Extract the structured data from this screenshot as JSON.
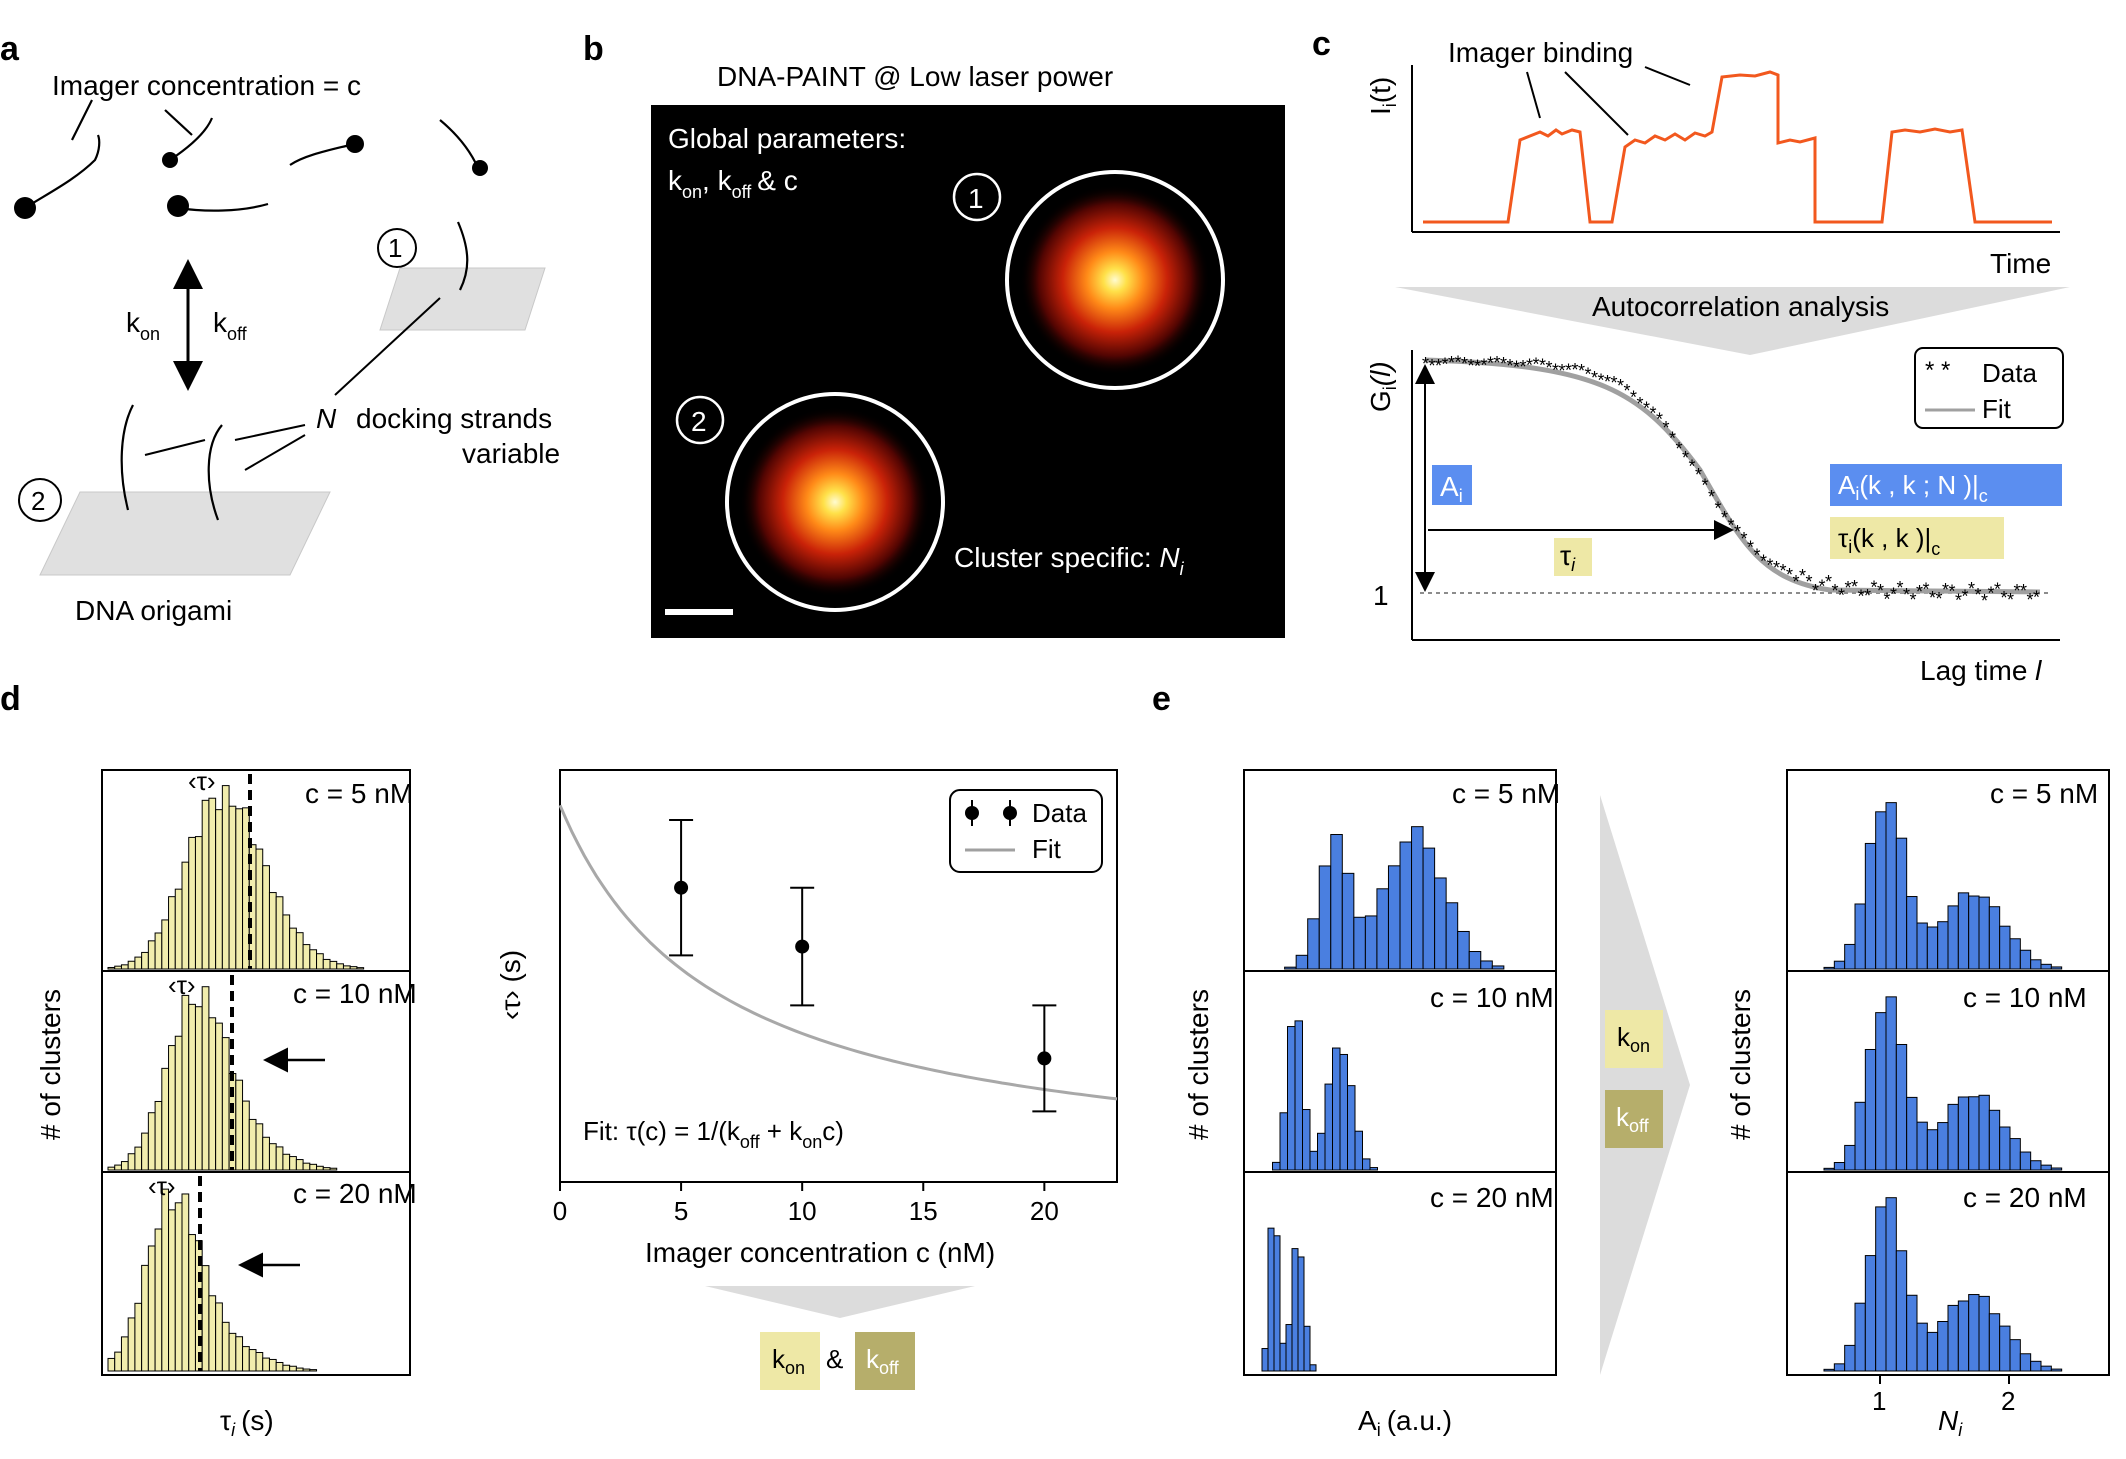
{
  "colors": {
    "yellow_bar": "#f1edad",
    "blue_bar": "#4a7fe0",
    "trace": "#f2581e",
    "dot": "#33aa33",
    "box_yellow": "#eee8a6",
    "box_olive": "#b6ae6b",
    "box_blue": "#5b8ef0",
    "gray_arrow": "#dcdcdc"
  },
  "icons": [
    "imager-strand-icon",
    "docking-strand-icon",
    "origami-platform-icon",
    "double-headed-arrow-icon",
    "down-arrow-icon",
    "left-arrow-icon"
  ],
  "panel_a": {
    "label": "a",
    "imager_concentration": "Imager concentration = c",
    "k_on": "k",
    "k_on_sub": "on",
    "k_off": "k",
    "k_off_sub": "off",
    "n_symbol": "N",
    "docking_strands": "docking strands",
    "variable": "variable",
    "origami_label": "DNA origami",
    "num1": "1",
    "num2": "2"
  },
  "panel_b": {
    "label": "b",
    "title": "DNA-PAINT @ Low laser power",
    "global_parameters": "Global parameters:",
    "kon_koff_c": "& c",
    "cluster_specific": "Cluster specific: ",
    "n_i": "N",
    "n_i_sub": "i",
    "num1": "1",
    "num2": "2"
  },
  "panel_c": {
    "label": "c",
    "imager_binding": "Imager binding",
    "trace_ylabel": "I",
    "trace_ylabel_sub": "i",
    "trace_ylabel_arg": "(t)",
    "time_label": "Time",
    "autocorrelation": "Autocorrelation analysis",
    "g_ylabel": "G",
    "g_ylabel_sub": "i",
    "g_ylabel_arg": "(l)",
    "lag_time": "Lag time ",
    "lag_symbol": "l",
    "one_tick": "1",
    "legend_data": "Data",
    "legend_fit": "Fit",
    "a_i": "A",
    "a_i_sub": "i",
    "tau_i": "τ",
    "tau_i_sub": "i",
    "a_formula": "(k , k  ; N )|",
    "tau_formula": "(k , k  )|",
    "c_symbol": "c"
  },
  "panel_d": {
    "label": "d",
    "ylabel": "# of clusters",
    "xlabel": "τ",
    "xlabel_sub": "i",
    "xlabel_unit": "(s)",
    "tau_mean": "‹τ›",
    "hist_titles": [
      "c = 5 nM",
      "c = 10 nM",
      "c = 20 nM"
    ],
    "kon": "k",
    "kon_sub": "on",
    "amp": "&",
    "koff": "k",
    "koff_sub": "off"
  },
  "panel_e": {
    "label": "e",
    "ylabel": "# of clusters",
    "xlabel_a": "A",
    "xlabel_a_sub": "i",
    "xlabel_a_unit": "(a.u.)",
    "xlabel_n": "N",
    "xlabel_n_sub": "i",
    "left_titles": [
      "c = 5 nM",
      "c  = 10 nM",
      "c = 20 nM"
    ],
    "right_titles": [
      "c = 5 nM",
      "c  = 10 nM",
      "c  = 20 nM"
    ],
    "n_ticks": [
      "1",
      "2"
    ],
    "kon": "k",
    "kon_sub": "on",
    "koff": "k",
    "koff_sub": "off"
  },
  "chart_data": [
    {
      "type": "scatter",
      "title": "",
      "xlabel": "Imager concentration c (nM)",
      "ylabel": "‹τ› (s)",
      "x": [
        5,
        10,
        20
      ],
      "y": [
        1.0,
        0.8,
        0.42
      ],
      "y_err": [
        0.23,
        0.2,
        0.18
      ],
      "xlim": [
        0,
        23
      ],
      "xticks": [
        "0",
        "5",
        "10",
        "15",
        "20"
      ],
      "fit": {
        "name": "Fit",
        "formula": "Fit: τ(c) = 1/(k  + k  c)",
        "k_off_sub": "off",
        "k_on_sub": "on",
        "y0": 1.28,
        "decay": 0.048
      },
      "legend": {
        "data": "Data",
        "fit": "Fit",
        "placement": "top-right"
      }
    }
  ]
}
